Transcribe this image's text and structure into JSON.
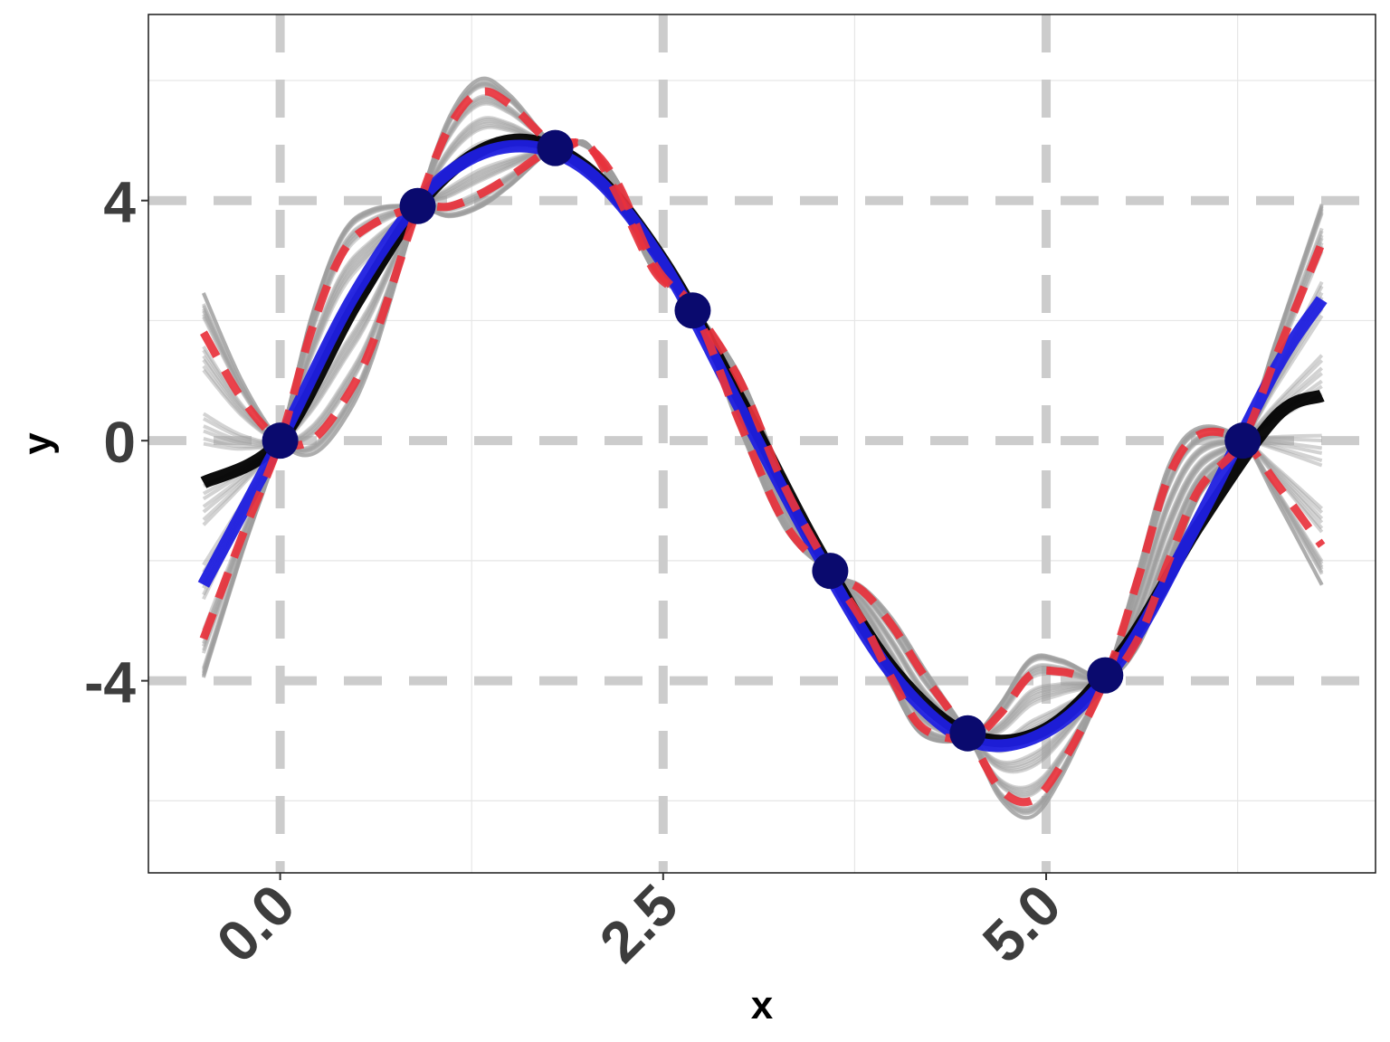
{
  "chart_data": {
    "type": "line",
    "title": "",
    "xlabel": "x",
    "ylabel": "y",
    "xlim": [
      -0.86,
      7.15
    ],
    "ylim": [
      -7.2,
      7.1
    ],
    "x_ticks": [
      {
        "value": 0,
        "label": "0.0"
      },
      {
        "value": 2.5,
        "label": "2.5"
      },
      {
        "value": 5,
        "label": "5.0"
      }
    ],
    "y_ticks": [
      {
        "value": -4,
        "label": "-4"
      },
      {
        "value": 0,
        "label": "0"
      },
      {
        "value": 4,
        "label": "4"
      }
    ],
    "x_minor_ticks": [
      1.25,
      3.75,
      6.25
    ],
    "y_minor_ticks": [
      -6,
      -2,
      2,
      6
    ],
    "grid": true,
    "legend": "none",
    "observed_points": {
      "x": [
        0,
        0.8976,
        1.7952,
        2.6928,
        3.5904,
        4.488,
        5.3856,
        6.2832
      ],
      "y": [
        0,
        3.909,
        4.875,
        2.169,
        -2.169,
        -4.875,
        -3.909,
        0
      ]
    },
    "series": [
      {
        "style": "solid-thick",
        "color": "#000000",
        "x": [
          -0.5,
          0,
          0.5,
          1,
          1.5,
          2,
          2.5,
          3,
          3.5,
          4,
          4.5,
          5,
          5.5,
          6,
          6.5,
          6.8
        ],
        "y": [
          -0.7,
          0,
          2.3,
          4.2,
          5.0,
          4.55,
          3.0,
          0.7,
          -1.75,
          -3.8,
          -4.9,
          -4.8,
          -3.5,
          -1.4,
          0.4,
          0.75
        ]
      },
      {
        "style": "solid-thick",
        "color": "#1f1fe0",
        "x": [
          -0.5,
          0,
          0.5,
          1,
          1.5,
          2,
          2.5,
          3,
          3.5,
          4,
          4.5,
          5,
          5.5,
          6,
          6.5,
          6.8
        ],
        "y": [
          -2.4,
          0,
          2.5,
          4.25,
          4.9,
          4.5,
          2.95,
          0.55,
          -1.85,
          -3.9,
          -5.0,
          -4.85,
          -3.6,
          -1.3,
          1.2,
          2.35
        ]
      },
      {
        "style": "dashed",
        "color": "#e8323c",
        "x": [
          -0.5,
          -0.25,
          0,
          0.2,
          0.4,
          0.6,
          0.9,
          1.1,
          1.3,
          1.5,
          1.8,
          2.0,
          2.2,
          2.45,
          2.7,
          3.0,
          3.3,
          3.6,
          3.8,
          4.0,
          4.2,
          4.5,
          4.7,
          4.9,
          5.1,
          5.39,
          5.6,
          5.8,
          6.0,
          6.28,
          6.5,
          6.8
        ],
        "y": [
          1.8,
          0.7,
          0.0,
          0.0,
          0.6,
          1.6,
          3.9,
          5.2,
          5.8,
          5.6,
          4.9,
          4.95,
          4.1,
          2.8,
          2.2,
          0.3,
          -1.4,
          -2.2,
          -2.5,
          -3.1,
          -3.9,
          -4.95,
          -5.8,
          -6.0,
          -5.4,
          -3.95,
          -2.3,
          -0.6,
          0.1,
          0.0,
          -0.7,
          -1.75
        ]
      },
      {
        "style": "dashed",
        "color": "#e8323c",
        "x": [
          -0.5,
          -0.25,
          0,
          0.2,
          0.4,
          0.6,
          0.9,
          1.1,
          1.3,
          1.5,
          1.8,
          2.0,
          2.2,
          2.45,
          2.7,
          3.0,
          3.3,
          3.6,
          3.8,
          4.0,
          4.2,
          4.5,
          4.7,
          4.9,
          5.1,
          5.39,
          5.6,
          5.8,
          6.0,
          6.28,
          6.5,
          6.8
        ],
        "y": [
          -3.3,
          -1.6,
          0.0,
          1.8,
          3.1,
          3.6,
          3.9,
          3.9,
          4.1,
          4.4,
          4.9,
          4.9,
          4.3,
          2.9,
          2.2,
          1.0,
          -0.8,
          -2.2,
          -3.0,
          -4.0,
          -4.8,
          -4.95,
          -4.55,
          -3.9,
          -3.85,
          -3.95,
          -3.3,
          -2.0,
          -0.8,
          0.0,
          1.4,
          3.3
        ]
      }
    ]
  }
}
